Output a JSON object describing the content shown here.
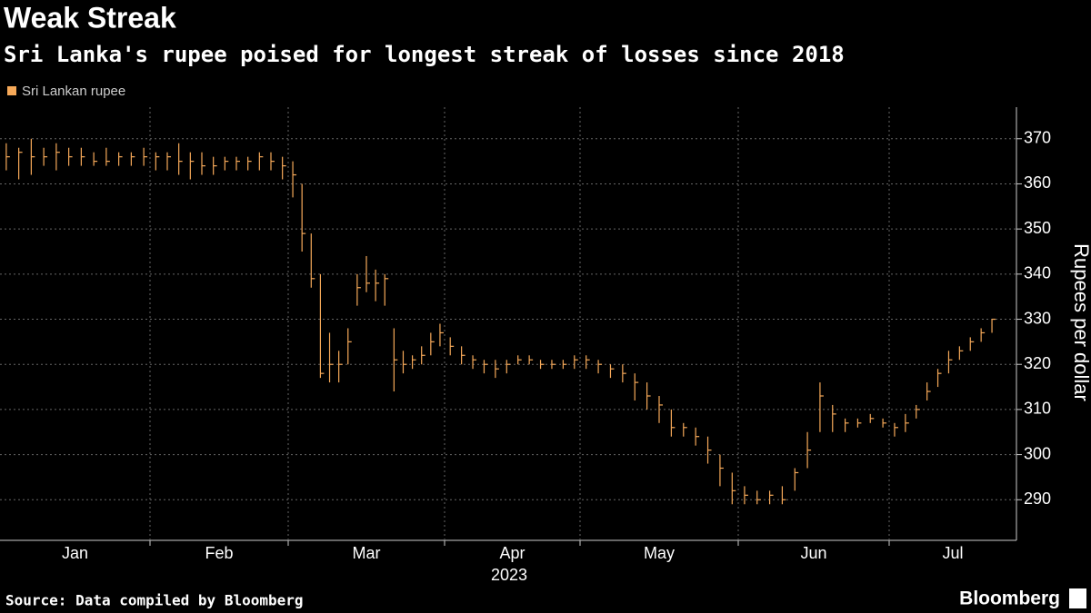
{
  "chart_data": {
    "type": "ohlc",
    "title": "Weak Streak",
    "subtitle": "Sri Lanka's rupee poised for longest streak of losses since 2018",
    "legend": "Sri Lankan rupee",
    "color": "#f6a959",
    "y_label": "Rupees per dollar",
    "x_year": "2023",
    "source": "Source: Data compiled by Bloomberg",
    "brand": "Bloomberg",
    "ylim": [
      281,
      377
    ],
    "yticks": [
      290,
      300,
      310,
      320,
      330,
      340,
      350,
      360,
      370
    ],
    "grid": true,
    "months": [
      {
        "label": "Jan",
        "high": [
          369,
          368,
          370,
          368,
          369,
          368,
          368,
          367,
          368,
          367,
          367,
          368
        ],
        "low": [
          363,
          361,
          362,
          364,
          363,
          364,
          364,
          364,
          364,
          364,
          364,
          364
        ],
        "close": [
          366,
          367,
          366,
          366,
          367,
          366,
          366,
          365,
          365,
          366,
          366,
          366
        ]
      },
      {
        "label": "Feb",
        "high": [
          367,
          367,
          369,
          367,
          367,
          366,
          366,
          366,
          366,
          367,
          367,
          366
        ],
        "low": [
          363,
          363,
          362,
          361,
          362,
          362,
          363,
          363,
          363,
          363,
          363,
          361
        ],
        "close": [
          366,
          366,
          365,
          365,
          364,
          364,
          365,
          365,
          365,
          366,
          365,
          364
        ]
      },
      {
        "label": "Mar",
        "high": [
          365,
          360,
          349,
          340,
          327,
          323,
          328,
          340,
          344,
          341,
          340,
          328,
          323,
          322,
          324,
          327,
          329
        ],
        "low": [
          357,
          345,
          337,
          317,
          316,
          316,
          320,
          333,
          336,
          334,
          333,
          314,
          318,
          319,
          320,
          322,
          324
        ],
        "close": [
          362,
          349,
          339,
          318,
          320,
          320,
          325,
          337,
          338,
          338,
          339,
          321,
          320,
          321,
          322,
          325,
          327
        ]
      },
      {
        "label": "Apr",
        "high": [
          326,
          324,
          322,
          321,
          321,
          321,
          322,
          322,
          321,
          321,
          321,
          322
        ],
        "low": [
          322,
          320,
          319,
          318,
          317,
          318,
          320,
          320,
          319,
          319,
          319,
          319
        ],
        "close": [
          324,
          322,
          321,
          320,
          319,
          320,
          321,
          321,
          320,
          320,
          320,
          321
        ]
      },
      {
        "label": "May",
        "high": [
          322,
          321,
          320,
          320,
          318,
          316,
          313,
          310,
          307,
          306,
          304,
          300,
          296
        ],
        "low": [
          319,
          318,
          317,
          316,
          312,
          310,
          307,
          304,
          304,
          302,
          298,
          293,
          289
        ],
        "close": [
          321,
          320,
          319,
          318,
          316,
          313,
          311,
          306,
          306,
          304,
          301,
          297,
          292
        ]
      },
      {
        "label": "Jun",
        "high": [
          293,
          292,
          292,
          293,
          297,
          305,
          316,
          311,
          308,
          308,
          309,
          308
        ],
        "low": [
          289,
          289,
          289,
          289,
          292,
          297,
          305,
          305,
          305,
          306,
          307,
          306
        ],
        "close": [
          291,
          290,
          291,
          290,
          296,
          301,
          313,
          309,
          307,
          307,
          308,
          307
        ]
      },
      {
        "label": "Jul",
        "high": [
          307,
          309,
          311,
          316,
          319,
          323,
          324,
          326,
          328,
          330
        ],
        "low": [
          304,
          305,
          308,
          312,
          315,
          318,
          321,
          323,
          325,
          327
        ],
        "close": [
          306,
          307,
          310,
          314,
          318,
          321,
          323,
          325,
          327,
          330
        ]
      }
    ]
  }
}
